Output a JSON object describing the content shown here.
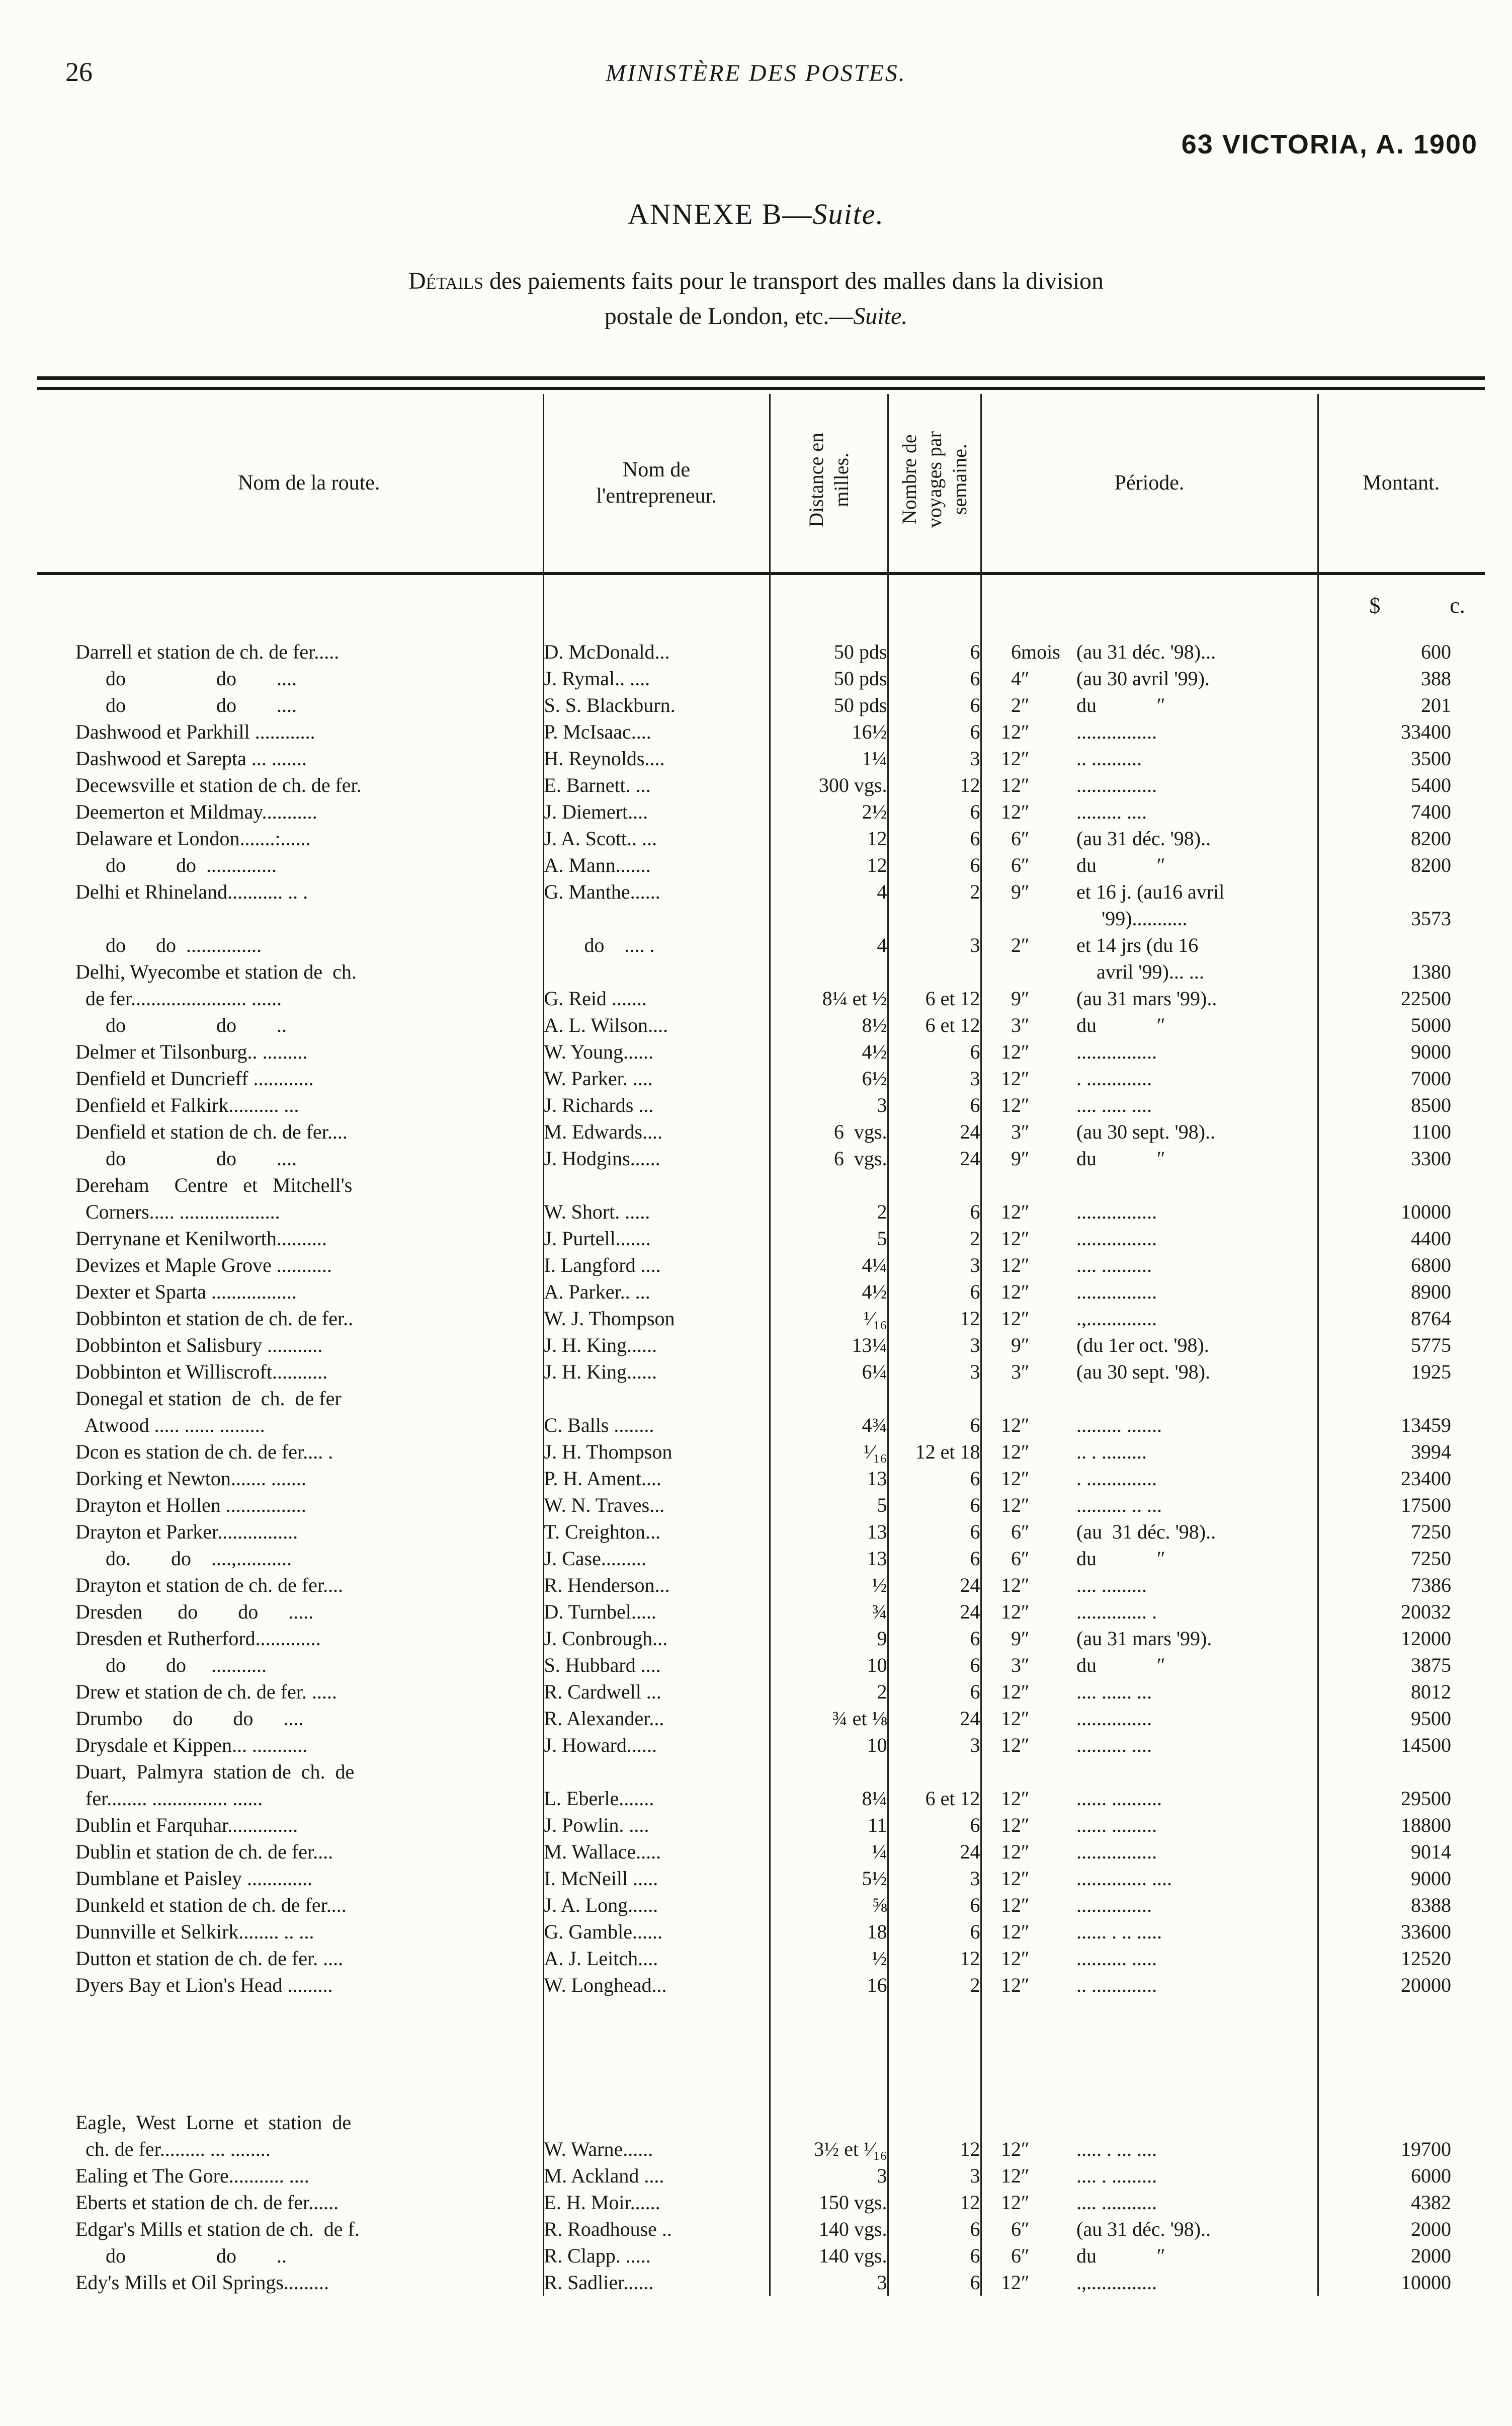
{
  "page": {
    "number": "26",
    "running_head": "MINISTÈRE DES POSTES.",
    "victoria": "63 VICTORIA,  A.  1900"
  },
  "annexe": {
    "prefix": "ANNEXE  B—",
    "suite": "Suite."
  },
  "caption": {
    "lead": "Détails",
    "line1_rest": " des paiements faits  pour le transport des malles dans la division",
    "line2_prefix": "postale de London, etc.—",
    "line2_suite": "Suite."
  },
  "table": {
    "headers": {
      "route": "Nom de la route.",
      "entrepreneur": "Nom de\nl'entrepreneur.",
      "distance": "Distance en\nmilles.",
      "voyages": "Nombre de\nvoyages par\nsemaine.",
      "periode": "Période.",
      "montant": "Montant.",
      "dollars": "$",
      "cents": "c."
    },
    "rows": [
      {
        "r": "Darrell et station de ch. de fer.....",
        "e": "D. McDonald...",
        "d": "50 pds",
        "v": "6",
        "m": "6",
        "u": "mois",
        "p": "(au 31 déc. '98)...",
        "md": "6",
        "mc": "00"
      },
      {
        "r": "      do                  do        ....",
        "e": "J. Rymal.. ....",
        "d": "50 pds",
        "v": "6",
        "m": "4",
        "u": "″",
        "p": "(au 30 avril '99).",
        "md": "3",
        "mc": "88"
      },
      {
        "r": "      do                  do        ....",
        "e": "S. S. Blackburn.",
        "d": "50 pds",
        "v": "6",
        "m": "2",
        "u": "″",
        "p": "du            ″",
        "md": "2",
        "mc": "01"
      },
      {
        "r": "Dashwood et Parkhill ............",
        "e": "P. McIsaac....",
        "d": "16½",
        "v": "6",
        "m": "12",
        "u": "″",
        "p": "................",
        "md": "334",
        "mc": "00"
      },
      {
        "r": "Dashwood et Sarepta ... .......",
        "e": "H. Reynolds....",
        "d": "1¼",
        "v": "3",
        "m": "12",
        "u": "″",
        "p": ".. ..........",
        "md": "35",
        "mc": "00"
      },
      {
        "r": "Decewsville et station de ch. de fer.",
        "e": "E. Barnett. ...",
        "d": "300 vgs.",
        "v": "12",
        "m": "12",
        "u": "″",
        "p": "................",
        "md": "54",
        "mc": "00"
      },
      {
        "r": "Deemerton et Mildmay...........",
        "e": "J. Diemert....",
        "d": "2½",
        "v": "6",
        "m": "12",
        "u": "″",
        "p": "......... ....",
        "md": "74",
        "mc": "00"
      },
      {
        "r": "Delaware et London.......:......",
        "e": "J. A. Scott.. ...",
        "d": "12",
        "v": "6",
        "m": "6",
        "u": "″",
        "p": "(au 31 déc. '98)..",
        "md": "82",
        "mc": "00"
      },
      {
        "r": "      do          do  ..............",
        "e": "A. Mann.......",
        "d": "12",
        "v": "6",
        "m": "6",
        "u": "″",
        "p": "du            ″",
        "md": "82",
        "mc": "00"
      },
      {
        "r": "Delhi et Rhineland........... .. .",
        "e": "G. Manthe......",
        "d": "4",
        "v": "2",
        "m": "9",
        "u": "″",
        "p": "et 16 j. (au16 avril"
      },
      {
        "p": "     '99)...........",
        "md": "35",
        "mc": "73"
      },
      {
        "r": "      do      do  ...............",
        "e": "        do    .... .",
        "d": "4",
        "v": "3",
        "m": "2",
        "u": "″",
        "p": "et 14 jrs (du 16"
      },
      {
        "r": "Delhi, Wyecombe et station de  ch.",
        "p": "    avril '99)... ...",
        "md": "13",
        "mc": "80"
      },
      {
        "r": "  de fer....................... ......",
        "e": "G. Reid .......",
        "d": "8¼ et ½",
        "v": "6 et 12",
        "m": "9",
        "u": "″",
        "p": "(au 31 mars '99)..",
        "md": "225",
        "mc": "00"
      },
      {
        "r": "      do                  do        ..",
        "e": "A. L. Wilson....",
        "d": "8½",
        "v": "6 et 12",
        "m": "3",
        "u": "″",
        "p": "du            ″",
        "md": "50",
        "mc": "00"
      },
      {
        "r": "Delmer et Tilsonburg.. .........",
        "e": "W. Young......",
        "d": "4½",
        "v": "6",
        "m": "12",
        "u": "″",
        "p": "................",
        "md": "90",
        "mc": "00"
      },
      {
        "r": "Denfield et Duncrieff ............",
        "e": "W. Parker. ....",
        "d": "6½",
        "v": "3",
        "m": "12",
        "u": "″",
        "p": ". .............",
        "md": "70",
        "mc": "00"
      },
      {
        "r": "Denfield et Falkirk.......... ...",
        "e": "J. Richards ...",
        "d": "3",
        "v": "6",
        "m": "12",
        "u": "″",
        "p": ".... ..... ....",
        "md": "85",
        "mc": "00"
      },
      {
        "r": "Denfield et station de ch. de fer....",
        "e": "M. Edwards....",
        "d": "6  vgs.",
        "v": "24",
        "m": "3",
        "u": "″",
        "p": "(au 30 sept. '98)..",
        "md": "11",
        "mc": "00"
      },
      {
        "r": "      do                  do        ....",
        "e": "J. Hodgins......",
        "d": "6  vgs.",
        "v": "24",
        "m": "9",
        "u": "″",
        "p": "du            ″",
        "md": "33",
        "mc": "00"
      },
      {
        "r": "Dereham     Centre   et   Mitchell's"
      },
      {
        "r": "  Corners..... ....................",
        "e": "W. Short. .....",
        "d": "2",
        "v": "6",
        "m": "12",
        "u": "″",
        "p": "................",
        "md": "100",
        "mc": "00"
      },
      {
        "r": "Derrynane et Kenilworth..........",
        "e": "J. Purtell.......",
        "d": "5",
        "v": "2",
        "m": "12",
        "u": "″",
        "p": "................",
        "md": "44",
        "mc": "00"
      },
      {
        "r": "Devizes et Maple Grove ...........",
        "e": "I. Langford ....",
        "d": "4¼",
        "v": "3",
        "m": "12",
        "u": "″",
        "p": ".... ..........",
        "md": "68",
        "mc": "00"
      },
      {
        "r": "Dexter et Sparta .................",
        "e": "A. Parker.. ...",
        "d": "4½",
        "v": "6",
        "m": "12",
        "u": "″",
        "p": "................",
        "md": "89",
        "mc": "00"
      },
      {
        "r": "Dobbinton et station de ch. de fer..",
        "e": "W. J. Thompson",
        "d": "¹⁄₁₆",
        "v": "12",
        "m": "12",
        "u": "″",
        "p": ".,..............",
        "md": "87",
        "mc": "64"
      },
      {
        "r": "Dobbinton et Salisbury ...........",
        "e": "J. H. King......",
        "d": "13¼",
        "v": "3",
        "m": "9",
        "u": "″",
        "p": "(du 1er oct. '98).",
        "md": "57",
        "mc": "75"
      },
      {
        "r": "Dobbinton et Williscroft...........",
        "e": "J. H. King......",
        "d": "6¼",
        "v": "3",
        "m": "3",
        "u": "″",
        "p": "(au 30 sept. '98).",
        "md": "19",
        "mc": "25"
      },
      {
        "r": "Donegal et station  de  ch.  de fer"
      },
      {
        "r": "  Atwood ..... ...... .........",
        "e": "C. Balls ........",
        "d": "4¾",
        "v": "6",
        "m": "12",
        "u": "″",
        "p": "......... .......",
        "md": "134",
        "mc": "59"
      },
      {
        "r": "Dcon es station de ch. de fer.... .",
        "e": "J. H. Thompson",
        "d": "¹⁄₁₆",
        "v": "12 et 18",
        "m": "12",
        "u": "″",
        "p": ".. . .........",
        "md": "39",
        "mc": "94"
      },
      {
        "r": "Dorking et Newton....... .......",
        "e": "P. H. Ament....",
        "d": "13",
        "v": "6",
        "m": "12",
        "u": "″",
        "p": ". ..............",
        "md": "234",
        "mc": "00"
      },
      {
        "r": "Drayton et Hollen ................",
        "e": "W. N. Traves...",
        "d": "5",
        "v": "6",
        "m": "12",
        "u": "″",
        "p": ".......... .. ...",
        "md": "175",
        "mc": "00"
      },
      {
        "r": "Drayton et Parker................",
        "e": "T. Creighton...",
        "d": "13",
        "v": "6",
        "m": "6",
        "u": "″",
        "p": "(au  31 déc. '98)..",
        "md": "72",
        "mc": "50"
      },
      {
        "r": "      do.        do    ....,...........",
        "e": "J. Case.........",
        "d": "13",
        "v": "6",
        "m": "6",
        "u": "″",
        "p": "du            ″",
        "md": "72",
        "mc": "50"
      },
      {
        "r": "Drayton et station de ch. de fer....",
        "e": "R. Henderson...",
        "d": "½",
        "v": "24",
        "m": "12",
        "u": "″",
        "p": ".... .........",
        "md": "73",
        "mc": "86"
      },
      {
        "r": "Dresden       do        do      .....",
        "e": "D. Turnbel.....",
        "d": "¾",
        "v": "24",
        "m": "12",
        "u": "″",
        "p": ".............. .",
        "md": "200",
        "mc": "32"
      },
      {
        "r": "Dresden et Rutherford.............",
        "e": "J. Conbrough...",
        "d": "9",
        "v": "6",
        "m": "9",
        "u": "″",
        "p": "(au 31 mars '99).",
        "md": "120",
        "mc": "00"
      },
      {
        "r": "      do        do     ...........",
        "e": "S. Hubbard ....",
        "d": "10",
        "v": "6",
        "m": "3",
        "u": "″",
        "p": "du            ″",
        "md": "38",
        "mc": "75"
      },
      {
        "r": "Drew et station de ch. de fer. .....",
        "e": "R. Cardwell ...",
        "d": "2",
        "v": "6",
        "m": "12",
        "u": "″",
        "p": ".... ...... ...",
        "md": "80",
        "mc": "12"
      },
      {
        "r": "Drumbo      do        do      ....",
        "e": "R. Alexander...",
        "d": "¾ et ⅛",
        "v": "24",
        "m": "12",
        "u": "″",
        "p": "...............",
        "md": "95",
        "mc": "00"
      },
      {
        "r": "Drysdale et Kippen... ...........",
        "e": "J. Howard......",
        "d": "10",
        "v": "3",
        "m": "12",
        "u": "″",
        "p": ".......... ....",
        "md": "145",
        "mc": "00"
      },
      {
        "r": "Duart,  Palmyra  station de  ch.  de"
      },
      {
        "r": "  fer........ ............... ......",
        "e": "L. Eberle.......",
        "d": "8¼",
        "v": "6 et 12",
        "m": "12",
        "u": "″",
        "p": "...... ..........",
        "md": "295",
        "mc": "00"
      },
      {
        "r": "Dublin et Farquhar..............",
        "e": "J. Powlin. ....",
        "d": "11",
        "v": "6",
        "m": "12",
        "u": "″",
        "p": "...... .........",
        "md": "188",
        "mc": "00"
      },
      {
        "r": "Dublin et station de ch. de fer....",
        "e": "M. Wallace.....",
        "d": "¼",
        "v": "24",
        "m": "12",
        "u": "″",
        "p": "................",
        "md": "90",
        "mc": "14"
      },
      {
        "r": "Dumblane et Paisley .............",
        "e": "I. McNeill .....",
        "d": "5½",
        "v": "3",
        "m": "12",
        "u": "″",
        "p": ".............. ....",
        "md": "90",
        "mc": "00"
      },
      {
        "r": "Dunkeld et station de ch. de fer....",
        "e": "J. A. Long......",
        "d": "⅝",
        "v": "6",
        "m": "12",
        "u": "″",
        "p": "...............",
        "md": "83",
        "mc": "88"
      },
      {
        "r": "Dunnville et Selkirk........ .. ...",
        "e": "G. Gamble......",
        "d": "18",
        "v": "6",
        "m": "12",
        "u": "″",
        "p": "...... . .. .....",
        "md": "336",
        "mc": "00"
      },
      {
        "r": "Dutton et station de ch. de fer. ....",
        "e": "A. J. Leitch....",
        "d": "½",
        "v": "12",
        "m": "12",
        "u": "″",
        "p": ".......... .....",
        "md": "125",
        "mc": "20"
      },
      {
        "r": "Dyers Bay et Lion's Head .........",
        "e": "W. Longhead...",
        "d": "16",
        "v": "2",
        "m": "12",
        "u": "″",
        "p": ".. .............",
        "md": "200",
        "mc": "00"
      },
      {
        "spacer": true
      },
      {
        "r": "Eagle,  West  Lorne  et  station  de"
      },
      {
        "r": "  ch. de fer......... ... ........",
        "e": "W. Warne......",
        "d": "3½ et ¹⁄₁₆",
        "v": "12",
        "m": "12",
        "u": "″",
        "p": "..... . ... ....",
        "md": "197",
        "mc": "00"
      },
      {
        "r": "Ealing et The Gore........... ....",
        "e": "M. Ackland ....",
        "d": "3",
        "v": "3",
        "m": "12",
        "u": "″",
        "p": ".... . .........",
        "md": "60",
        "mc": "00"
      },
      {
        "r": "Eberts et station de ch. de fer......",
        "e": "E. H. Moir......",
        "d": "150 vgs.",
        "v": "12",
        "m": "12",
        "u": "″",
        "p": ".... ...........",
        "md": "43",
        "mc": "82"
      },
      {
        "r": "Edgar's Mills et station de ch.  de f.",
        "e": "R. Roadhouse ..",
        "d": "140 vgs.",
        "v": "6",
        "m": "6",
        "u": "″",
        "p": "(au 31 déc. '98)..",
        "md": "20",
        "mc": "00"
      },
      {
        "r": "      do                  do        ..",
        "e": "R. Clapp. .....",
        "d": "140 vgs.",
        "v": "6",
        "m": "6",
        "u": "″",
        "p": "du            ″",
        "md": "20",
        "mc": "00"
      },
      {
        "r": "Edy's Mills et Oil Springs.........",
        "e": "R. Sadlier......",
        "d": "3",
        "v": "6",
        "m": "12",
        "u": "″",
        "p": ".,..............",
        "md": "100",
        "mc": "00"
      }
    ]
  }
}
